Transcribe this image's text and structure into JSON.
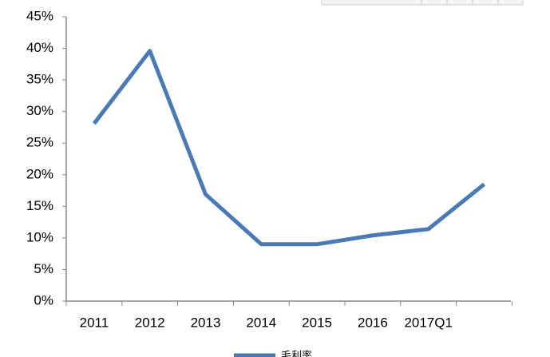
{
  "chart_data": {
    "type": "line",
    "categories": [
      "2011",
      "2012",
      "2013",
      "2014",
      "2015",
      "2016",
      "2017Q1",
      null
    ],
    "series": [
      {
        "name": "毛利率",
        "color": "#4a7ab5",
        "values": [
          28.1,
          39.6,
          16.9,
          9.0,
          9.0,
          10.4,
          11.4,
          18.5
        ]
      }
    ],
    "ylim": [
      0,
      45
    ],
    "yticks": [
      {
        "value": 0,
        "label": "0%"
      },
      {
        "value": 5,
        "label": "5%"
      },
      {
        "value": 10,
        "label": "10%"
      },
      {
        "value": 15,
        "label": "15%"
      },
      {
        "value": 20,
        "label": "20%"
      },
      {
        "value": 25,
        "label": "25%"
      },
      {
        "value": 30,
        "label": "30%"
      },
      {
        "value": 35,
        "label": "35%"
      },
      {
        "value": 40,
        "label": "40%"
      },
      {
        "value": 45,
        "label": "45%"
      }
    ],
    "legend": "bottom"
  }
}
